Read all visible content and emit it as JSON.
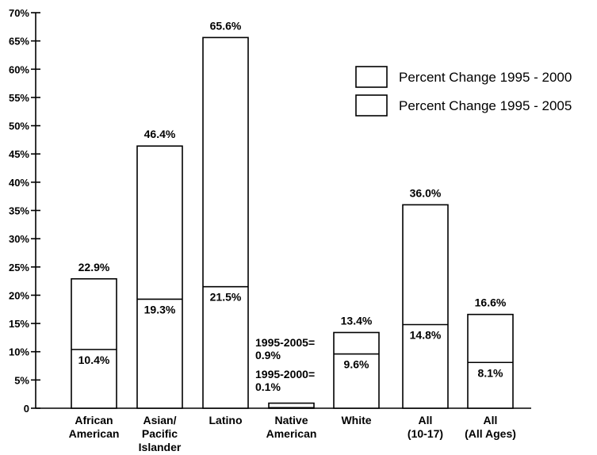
{
  "chart_data": {
    "type": "bar",
    "stacked_overlay": true,
    "categories": [
      [
        "African",
        "American"
      ],
      [
        "Asian/",
        "Pacific",
        "Islander"
      ],
      [
        "Latino"
      ],
      [
        "Native",
        "American"
      ],
      [
        "White"
      ],
      [
        "All",
        "(10-17)"
      ],
      [
        "All",
        "(All Ages)"
      ]
    ],
    "series": [
      {
        "name": "Percent Change 1995 - 2000",
        "values": [
          10.4,
          19.3,
          21.5,
          0.1,
          9.6,
          14.8,
          8.1
        ]
      },
      {
        "name": "Percent Change 1995 - 2005",
        "values": [
          22.9,
          46.4,
          65.6,
          0.9,
          13.4,
          36.0,
          16.6
        ]
      }
    ],
    "value_labels_2000": [
      "10.4%",
      "19.3%",
      "21.5%",
      "",
      "9.6%",
      "14.8%",
      "8.1%"
    ],
    "value_labels_2005": [
      "22.9%",
      "46.4%",
      "65.6%",
      "",
      "13.4%",
      "36.0%",
      "16.6%"
    ],
    "annotations": {
      "native_2005": [
        "1995-2005=",
        "0.9%"
      ],
      "native_2000": [
        "1995-2000=",
        "0.1%"
      ]
    },
    "ylim": [
      0,
      70
    ],
    "yticks": [
      "0",
      "5%",
      "10%",
      "15%",
      "20%",
      "25%",
      "30%",
      "35%",
      "40%",
      "45%",
      "50%",
      "55%",
      "60%",
      "65%",
      "70%"
    ],
    "legend": {
      "position": "top-right",
      "entries": [
        "Percent Change 1995 - 2000",
        "Percent Change 1995 - 2005"
      ]
    },
    "grid": false
  }
}
